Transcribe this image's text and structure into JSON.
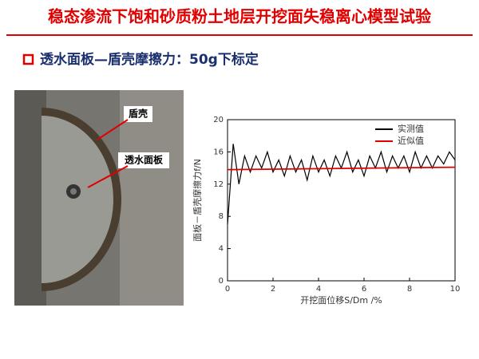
{
  "header": {
    "title": "稳态渗流下饱和砂质粉土地层开挖面失稳离心模型试验"
  },
  "bullet": {
    "text": "透水面板—盾壳摩擦力：50g下标定"
  },
  "photo": {
    "labels": [
      "盾壳",
      "透水面板"
    ]
  },
  "chart_data": {
    "type": "line",
    "y_label": "面板－盾壳摩擦力f/N",
    "x_label": "开挖面位移S/Dm /%",
    "xlim": [
      0,
      10
    ],
    "xticks": [
      0,
      2,
      4,
      6,
      8,
      10
    ],
    "ylim": [
      0,
      20
    ],
    "yticks": [
      0,
      4,
      8,
      12,
      16,
      20
    ],
    "legend": "upper right",
    "series": [
      {
        "name": "实测值",
        "color": "#000000",
        "x": [
          0,
          0.25,
          0.5,
          0.75,
          1,
          1.25,
          1.5,
          1.75,
          2,
          2.25,
          2.5,
          2.75,
          3,
          3.25,
          3.5,
          3.75,
          4,
          4.25,
          4.5,
          4.75,
          5,
          5.25,
          5.5,
          5.75,
          6,
          6.25,
          6.5,
          6.75,
          7,
          7.25,
          7.5,
          7.75,
          8,
          8.25,
          8.5,
          8.75,
          9,
          9.25,
          9.5,
          9.75,
          10
        ],
        "values": [
          7,
          17,
          12,
          15.5,
          13.5,
          15.5,
          14,
          16,
          13.5,
          15,
          13,
          15.5,
          13.5,
          15,
          12.5,
          15.5,
          13.5,
          15,
          13,
          15.5,
          14,
          16,
          13.5,
          15,
          13,
          15.5,
          14,
          16,
          13.5,
          15.5,
          14,
          15.5,
          13.5,
          16,
          14,
          15.5,
          14,
          15.5,
          14.5,
          16,
          15
        ]
      },
      {
        "name": "近似值",
        "color": "#e00000",
        "x": [
          0,
          10
        ],
        "values": [
          13.8,
          14.1
        ]
      }
    ]
  }
}
